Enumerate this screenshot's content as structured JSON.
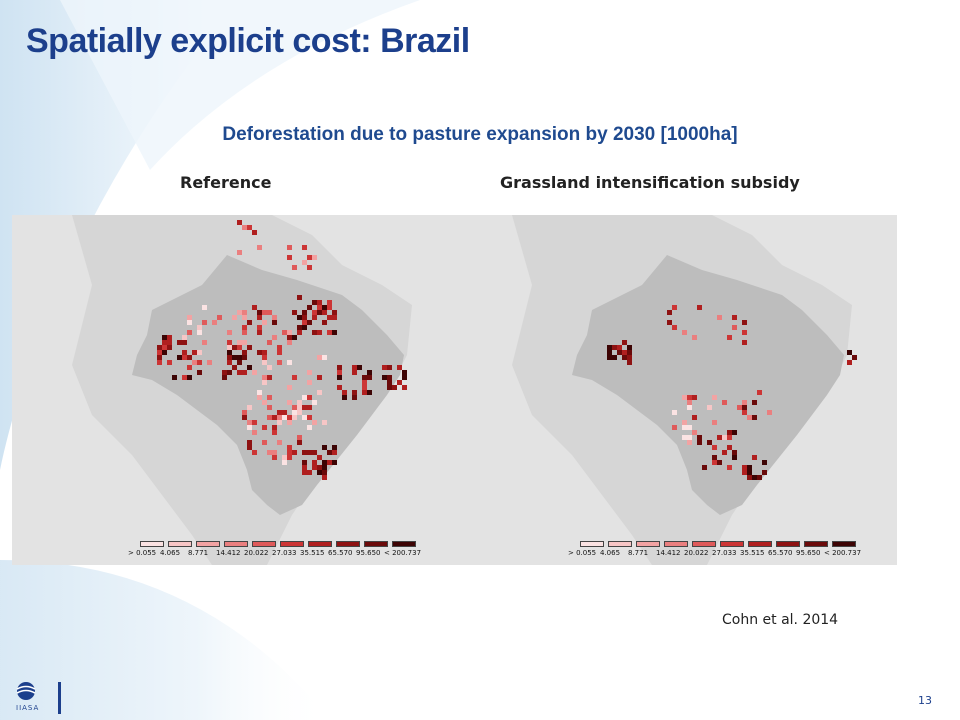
{
  "slide": {
    "title": "Spatially explicit cost: Brazil",
    "figure_title": "Deforestation due to pasture expansion by 2030 [1000ha]",
    "citation": "Cohn et al. 2014",
    "page_number": "13",
    "logo_text": "IIASA"
  },
  "panels": [
    {
      "label": "Reference"
    },
    {
      "label": "Grassland intensification subsidy"
    }
  ],
  "legend": {
    "labels": [
      ">  0.055",
      "4.065",
      "8.771",
      "14.412",
      "20.022",
      "27.033",
      "35.515",
      "65.570",
      "95.650",
      "< 200.737"
    ],
    "colors": [
      "#fbe3e3",
      "#f7c6c6",
      "#f2a3a3",
      "#ea7f7f",
      "#df5a5a",
      "#cc3535",
      "#b01f1f",
      "#8e1212",
      "#6a0a0a",
      "#3d0404"
    ]
  },
  "colors": {
    "title": "#1c3f8c",
    "figure_title": "#1f4a8f",
    "land_other": "#d6d6d6",
    "brazil": "#bdbdbd",
    "panel_bg": "#e3e3e3"
  }
}
